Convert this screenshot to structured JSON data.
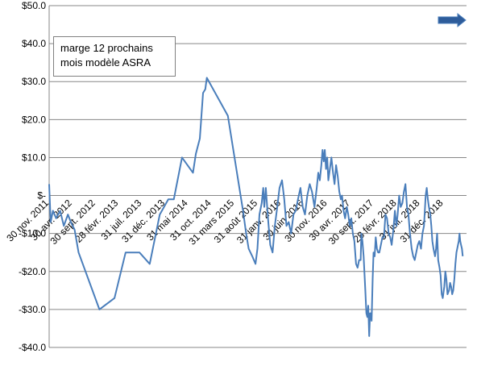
{
  "legend": {
    "line1": "marge 12  prochains",
    "line2": "mois modèle ASRA"
  },
  "colors": {
    "line": "#4a7ebb",
    "arrow_fill": "#2e5c9a",
    "grid": "#878787"
  },
  "chart_data": {
    "type": "line",
    "title": "",
    "xlabel": "",
    "ylabel": "",
    "ylim": [
      -40,
      50
    ],
    "yticks": [
      {
        "value": 50,
        "label": "$50.0"
      },
      {
        "value": 40,
        "label": "$40.0"
      },
      {
        "value": 30,
        "label": "$30.0"
      },
      {
        "value": 20,
        "label": "$20.0"
      },
      {
        "value": 10,
        "label": "$10.0"
      },
      {
        "value": 0,
        "label": "$-"
      },
      {
        "value": -10,
        "label": "-$10.0"
      },
      {
        "value": -20,
        "label": "-$20.0"
      },
      {
        "value": -30,
        "label": "-$30.0"
      },
      {
        "value": -40,
        "label": "-$40.0"
      }
    ],
    "xrange": [
      "2011-11-30",
      "2019-05-31"
    ],
    "xticks": [
      {
        "date": "2011-11-30",
        "label": "30 nov. 2011"
      },
      {
        "date": "2012-04-30",
        "label": "30 avr. 2012"
      },
      {
        "date": "2012-09-30",
        "label": "30 sept. 2012"
      },
      {
        "date": "2013-02-28",
        "label": "28 févr. 2013"
      },
      {
        "date": "2013-07-31",
        "label": "31 juil. 2013"
      },
      {
        "date": "2013-12-31",
        "label": "31 déc. 2013"
      },
      {
        "date": "2014-05-31",
        "label": "31 mai 2014"
      },
      {
        "date": "2014-10-31",
        "label": "31 oct. 2014"
      },
      {
        "date": "2015-03-31",
        "label": "31 mars 2015"
      },
      {
        "date": "2015-08-31",
        "label": "31 août 2015"
      },
      {
        "date": "2016-01-31",
        "label": "31 janv. 2016"
      },
      {
        "date": "2016-06-30",
        "label": "30 juin 2016"
      },
      {
        "date": "2016-11-30",
        "label": "30 nov. 2016"
      },
      {
        "date": "2017-04-30",
        "label": "30 avr. 2017"
      },
      {
        "date": "2017-09-30",
        "label": "30 sept. 2017"
      },
      {
        "date": "2018-02-28",
        "label": "28 févr. 2018"
      },
      {
        "date": "2018-07-31",
        "label": "31 juil. 2018"
      },
      {
        "date": "2018-12-31",
        "label": "31 déc. 2018"
      }
    ],
    "grid": "horizontal",
    "series": [
      {
        "name": "",
        "points": [
          [
            "2011-11-30",
            3
          ],
          [
            "2011-12-10",
            -7
          ],
          [
            "2011-12-25",
            -4
          ],
          [
            "2012-01-15",
            -6
          ],
          [
            "2012-02-10",
            -4
          ],
          [
            "2012-03-05",
            -8
          ],
          [
            "2012-04-01",
            -5
          ],
          [
            "2012-04-20",
            -7
          ],
          [
            "2012-05-15",
            -9
          ],
          [
            "2012-06-10",
            -15
          ],
          [
            "2012-10-25",
            -30
          ],
          [
            "2013-02-01",
            -27
          ],
          [
            "2013-04-15",
            -15
          ],
          [
            "2013-07-15",
            -15
          ],
          [
            "2013-09-20",
            -18
          ],
          [
            "2013-11-25",
            -5
          ],
          [
            "2014-01-20",
            -1
          ],
          [
            "2014-02-25",
            -1
          ],
          [
            "2014-04-20",
            10
          ],
          [
            "2014-07-01",
            6
          ],
          [
            "2014-07-20",
            11
          ],
          [
            "2014-08-15",
            15
          ],
          [
            "2014-09-05",
            27
          ],
          [
            "2014-09-20",
            28
          ],
          [
            "2014-09-30",
            31
          ],
          [
            "2015-02-15",
            21
          ],
          [
            "2015-05-25",
            -4
          ],
          [
            "2015-06-15",
            -10
          ],
          [
            "2015-07-01",
            -14
          ],
          [
            "2015-07-25",
            -16
          ],
          [
            "2015-08-15",
            -18
          ],
          [
            "2015-08-28",
            -14
          ],
          [
            "2015-09-10",
            -5
          ],
          [
            "2015-09-25",
            -2
          ],
          [
            "2015-10-05",
            2
          ],
          [
            "2015-10-12",
            -3
          ],
          [
            "2015-10-22",
            2
          ],
          [
            "2015-11-05",
            -6
          ],
          [
            "2015-11-20",
            -13
          ],
          [
            "2015-12-05",
            -15
          ],
          [
            "2015-12-20",
            -8
          ],
          [
            "2016-01-05",
            -3
          ],
          [
            "2016-01-20",
            2
          ],
          [
            "2016-02-05",
            4
          ],
          [
            "2016-02-20",
            -1
          ],
          [
            "2016-03-05",
            -8
          ],
          [
            "2016-03-20",
            -7
          ],
          [
            "2016-04-05",
            -10
          ],
          [
            "2016-04-20",
            -5
          ],
          [
            "2016-05-05",
            -4
          ],
          [
            "2016-05-20",
            -1
          ],
          [
            "2016-06-05",
            2
          ],
          [
            "2016-06-20",
            -3
          ],
          [
            "2016-07-05",
            -5
          ],
          [
            "2016-07-20",
            0
          ],
          [
            "2016-08-05",
            3
          ],
          [
            "2016-08-20",
            1
          ],
          [
            "2016-09-05",
            -3
          ],
          [
            "2016-09-20",
            2
          ],
          [
            "2016-09-30",
            6
          ],
          [
            "2016-10-10",
            4
          ],
          [
            "2016-10-20",
            8
          ],
          [
            "2016-10-28",
            12
          ],
          [
            "2016-11-05",
            9
          ],
          [
            "2016-11-12",
            12
          ],
          [
            "2016-11-20",
            7
          ],
          [
            "2016-11-28",
            10
          ],
          [
            "2016-12-05",
            4
          ],
          [
            "2016-12-15",
            7
          ],
          [
            "2016-12-25",
            10
          ],
          [
            "2017-01-05",
            6
          ],
          [
            "2017-01-15",
            3
          ],
          [
            "2017-01-25",
            8
          ],
          [
            "2017-02-05",
            5
          ],
          [
            "2017-02-15",
            1
          ],
          [
            "2017-02-25",
            -1
          ],
          [
            "2017-03-05",
            0
          ],
          [
            "2017-03-15",
            -4
          ],
          [
            "2017-03-25",
            -6
          ],
          [
            "2017-04-05",
            -3
          ],
          [
            "2017-04-15",
            -5
          ],
          [
            "2017-04-25",
            -8
          ],
          [
            "2017-05-05",
            -6
          ],
          [
            "2017-05-15",
            -10
          ],
          [
            "2017-05-25",
            -12
          ],
          [
            "2017-06-05",
            -18
          ],
          [
            "2017-06-15",
            -19
          ],
          [
            "2017-06-25",
            -17
          ],
          [
            "2017-07-05",
            -17
          ],
          [
            "2017-07-10",
            -10
          ],
          [
            "2017-07-17",
            -12
          ],
          [
            "2017-07-25",
            -16
          ],
          [
            "2017-08-05",
            -25
          ],
          [
            "2017-08-12",
            -31
          ],
          [
            "2017-08-18",
            -32
          ],
          [
            "2017-08-24",
            -29
          ],
          [
            "2017-08-30",
            -37
          ],
          [
            "2017-09-05",
            -31
          ],
          [
            "2017-09-10",
            -31
          ],
          [
            "2017-09-15",
            -33
          ],
          [
            "2017-09-22",
            -22
          ],
          [
            "2017-09-28",
            -15
          ],
          [
            "2017-10-05",
            -16
          ],
          [
            "2017-10-12",
            -11
          ],
          [
            "2017-10-20",
            -14
          ],
          [
            "2017-10-28",
            -15
          ],
          [
            "2017-11-05",
            -15
          ],
          [
            "2017-11-15",
            -13
          ],
          [
            "2017-11-25",
            -11
          ],
          [
            "2017-12-05",
            -11
          ],
          [
            "2017-12-15",
            -5
          ],
          [
            "2017-12-25",
            -6
          ],
          [
            "2018-01-05",
            -10
          ],
          [
            "2018-01-15",
            -11
          ],
          [
            "2018-01-25",
            -13
          ],
          [
            "2018-02-05",
            -9
          ],
          [
            "2018-02-15",
            -4
          ],
          [
            "2018-02-25",
            -8
          ],
          [
            "2018-03-05",
            -5
          ],
          [
            "2018-03-15",
            0
          ],
          [
            "2018-03-25",
            -3
          ],
          [
            "2018-04-05",
            -2
          ],
          [
            "2018-04-15",
            1
          ],
          [
            "2018-04-25",
            3
          ],
          [
            "2018-05-05",
            -3
          ],
          [
            "2018-05-15",
            -5
          ],
          [
            "2018-05-25",
            -10
          ],
          [
            "2018-06-05",
            -14
          ],
          [
            "2018-06-15",
            -16
          ],
          [
            "2018-06-25",
            -17
          ],
          [
            "2018-07-05",
            -15
          ],
          [
            "2018-07-15",
            -13
          ],
          [
            "2018-07-25",
            -12
          ],
          [
            "2018-08-05",
            -14
          ],
          [
            "2018-08-15",
            -10
          ],
          [
            "2018-08-25",
            -8
          ],
          [
            "2018-09-05",
            0
          ],
          [
            "2018-09-12",
            2
          ],
          [
            "2018-09-19",
            -1
          ],
          [
            "2018-09-26",
            -3
          ],
          [
            "2018-10-05",
            -5
          ],
          [
            "2018-10-12",
            -8
          ],
          [
            "2018-10-19",
            -12
          ],
          [
            "2018-10-26",
            -14
          ],
          [
            "2018-11-05",
            -16
          ],
          [
            "2018-11-12",
            -14
          ],
          [
            "2018-11-19",
            -10
          ],
          [
            "2018-11-26",
            -17
          ],
          [
            "2018-12-05",
            -19
          ],
          [
            "2018-12-12",
            -21
          ],
          [
            "2018-12-19",
            -26
          ],
          [
            "2018-12-26",
            -27
          ],
          [
            "2019-01-05",
            -24
          ],
          [
            "2019-01-12",
            -20
          ],
          [
            "2019-01-19",
            -22
          ],
          [
            "2019-01-26",
            -26
          ],
          [
            "2019-02-05",
            -25
          ],
          [
            "2019-02-12",
            -23
          ],
          [
            "2019-02-19",
            -24
          ],
          [
            "2019-02-26",
            -26
          ],
          [
            "2019-03-05",
            -25
          ],
          [
            "2019-03-12",
            -22
          ],
          [
            "2019-03-19",
            -18
          ],
          [
            "2019-03-26",
            -15
          ],
          [
            "2019-04-05",
            -13
          ],
          [
            "2019-04-10",
            -12
          ],
          [
            "2019-04-15",
            -10
          ],
          [
            "2019-04-20",
            -12
          ],
          [
            "2019-04-25",
            -13
          ],
          [
            "2019-05-01",
            -14
          ],
          [
            "2019-05-06",
            -16
          ]
        ]
      }
    ]
  }
}
